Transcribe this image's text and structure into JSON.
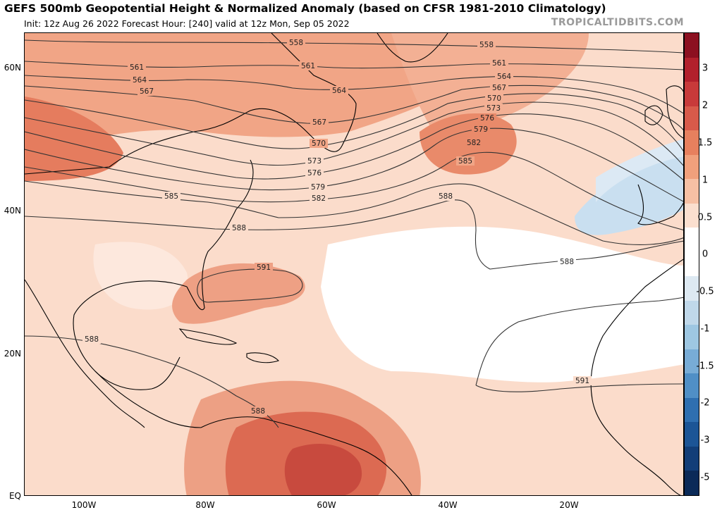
{
  "header": {
    "title": "GEFS 500mb Geopotential Height & Normalized Anomaly (based on CFSR 1981-2010 Climatology)",
    "subtitle": "Init: 12z Aug 26 2022   Forecast Hour: [240]   valid at 12z Mon, Sep 05 2022",
    "brand": "TROPICALTIDBITS.COM"
  },
  "axes": {
    "lat_labels": [
      "60N",
      "40N",
      "20N",
      "EQ"
    ],
    "lon_labels": [
      "100W",
      "80W",
      "60W",
      "40W",
      "20W"
    ]
  },
  "colorbar": {
    "labels": [
      "3",
      "2",
      "1.5",
      "1",
      "0.5",
      "0",
      "-0.5",
      "-1",
      "-1.5",
      "-2",
      "-3",
      "-5"
    ],
    "colors": [
      "#8c1020",
      "#b2202c",
      "#c83a3a",
      "#d85a4a",
      "#e7805e",
      "#f0a07c",
      "#f6c0a4",
      "#fbdfcf",
      "#ffffff",
      "#ffffff",
      "#dde9f2",
      "#c0d8ea",
      "#9ec7e2",
      "#78acd6",
      "#508fc6",
      "#2f6fb0",
      "#1c5596",
      "#123e78",
      "#0b2a58"
    ]
  },
  "contours": {
    "labels": [
      "558",
      "561",
      "564",
      "567",
      "570",
      "573",
      "576",
      "579",
      "582",
      "585",
      "588",
      "591"
    ]
  },
  "colors": {
    "anomaly_high": "#e7805e",
    "anomaly_low": "#c0d8ea",
    "contour": "#333333",
    "coastline": "#000000"
  }
}
